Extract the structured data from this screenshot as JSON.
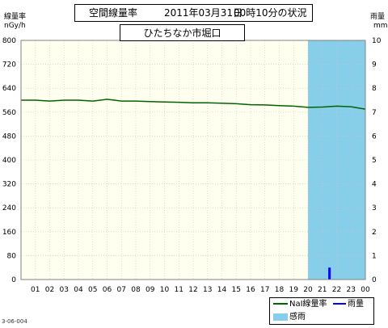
{
  "header": {
    "title": "空間線量率",
    "date": "2011年03月31日",
    "time": "00時10分の状況",
    "station": "ひたちなか市堀口"
  },
  "axes": {
    "left_title": "線量率",
    "left_unit": "nGy/h",
    "right_title": "雨量",
    "right_unit": "mm"
  },
  "legend": {
    "nai": "NaI線量率",
    "rain": "雨量",
    "sense": "感雨"
  },
  "footer_code": "3-06-004",
  "colors": {
    "plot_bg": "#fffff0",
    "dose_line": "#006400",
    "rain_bar": "#0000ff",
    "sense_band": "#87ceeb",
    "grid": "#c8c8c8"
  },
  "chart_data": {
    "type": "line",
    "categories": [
      "01",
      "02",
      "03",
      "04",
      "05",
      "06",
      "07",
      "08",
      "09",
      "10",
      "11",
      "12",
      "13",
      "14",
      "15",
      "16",
      "17",
      "18",
      "19",
      "20",
      "21",
      "22",
      "23",
      "00"
    ],
    "series": [
      {
        "name": "NaI線量率",
        "axis": "left",
        "x": [
          0,
          1,
          2,
          3,
          4,
          5,
          6,
          7,
          8,
          9,
          10,
          11,
          12,
          13,
          14,
          15,
          16,
          17,
          18,
          19,
          20,
          21,
          22,
          23,
          24
        ],
        "values": [
          600,
          600,
          597,
          600,
          600,
          597,
          603,
          597,
          597,
          595,
          594,
          593,
          591,
          591,
          590,
          588,
          585,
          584,
          582,
          580,
          576,
          577,
          580,
          578,
          570
        ]
      },
      {
        "name": "雨量",
        "axis": "right",
        "x": [
          21.5
        ],
        "values": [
          0.5
        ]
      }
    ],
    "sense_periods": [
      [
        20,
        24
      ]
    ],
    "ylim_left": [
      0,
      800
    ],
    "yticks_left": [
      0,
      80,
      160,
      240,
      320,
      400,
      480,
      560,
      640,
      720,
      800
    ],
    "ylim_right": [
      0,
      10
    ],
    "yticks_right": [
      0,
      1,
      2,
      3,
      4,
      5,
      6,
      7,
      8,
      9,
      10
    ],
    "xlim": [
      0,
      24
    ],
    "grid": true,
    "legend_position": "bottom-right"
  }
}
